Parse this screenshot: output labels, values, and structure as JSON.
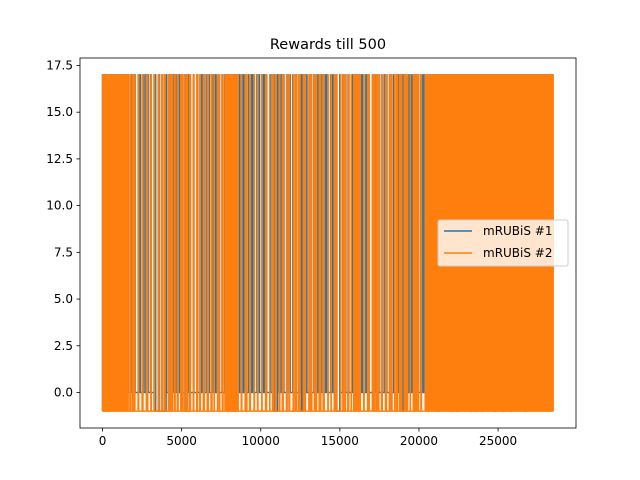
{
  "chart_data": {
    "type": "line",
    "title": "Rewards till 500",
    "xlabel": "",
    "ylabel": "",
    "xlim": [
      -1425,
      29925
    ],
    "ylim": [
      -1.9,
      17.9
    ],
    "xticks": [
      0,
      5000,
      10000,
      15000,
      20000,
      25000
    ],
    "xtick_labels": [
      "0",
      "5000",
      "10000",
      "15000",
      "20000",
      "25000"
    ],
    "yticks": [
      0.0,
      2.5,
      5.0,
      7.5,
      10.0,
      12.5,
      15.0,
      17.5
    ],
    "ytick_labels": [
      "0.0",
      "2.5",
      "5.0",
      "7.5",
      "10.0",
      "12.5",
      "15.0",
      "17.5"
    ],
    "grid": false,
    "legend_position": "center-right",
    "series": [
      {
        "name": "mRUBiS #1",
        "color": "#1f77b4",
        "x_range": [
          0,
          28500
        ],
        "low": 0,
        "high": 17,
        "min": -1
      },
      {
        "name": "mRUBiS #2",
        "color": "#ff7f0e",
        "x_range": [
          0,
          28500
        ],
        "low": -1,
        "high": 17,
        "min": -1
      }
    ]
  }
}
